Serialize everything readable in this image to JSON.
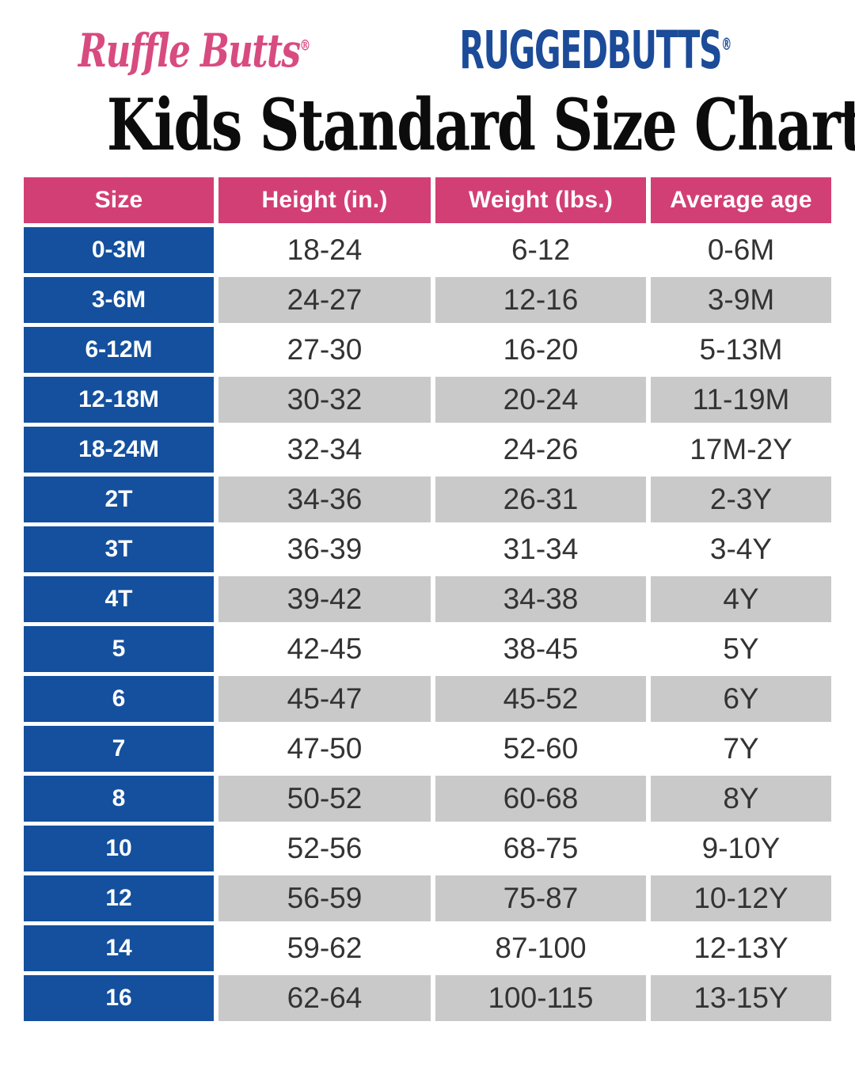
{
  "brand": {
    "rufflebutts": "Ruffle Butts",
    "ruggedbutts": "RUGGEDBUTTS",
    "registered": "®"
  },
  "title": "Kids Standard Size Chart",
  "table": {
    "headers": {
      "size": "Size",
      "height": "Height (in.)",
      "weight": "Weight (lbs.)",
      "age": "Average age"
    },
    "rows": [
      {
        "size": "0-3M",
        "height": "18-24",
        "weight": "6-12",
        "age": "0-6M"
      },
      {
        "size": "3-6M",
        "height": "24-27",
        "weight": "12-16",
        "age": "3-9M"
      },
      {
        "size": "6-12M",
        "height": "27-30",
        "weight": "16-20",
        "age": "5-13M"
      },
      {
        "size": "12-18M",
        "height": "30-32",
        "weight": "20-24",
        "age": "11-19M"
      },
      {
        "size": "18-24M",
        "height": "32-34",
        "weight": "24-26",
        "age": "17M-2Y"
      },
      {
        "size": "2T",
        "height": "34-36",
        "weight": "26-31",
        "age": "2-3Y"
      },
      {
        "size": "3T",
        "height": "36-39",
        "weight": "31-34",
        "age": "3-4Y"
      },
      {
        "size": "4T",
        "height": "39-42",
        "weight": "34-38",
        "age": "4Y"
      },
      {
        "size": "5",
        "height": "42-45",
        "weight": "38-45",
        "age": "5Y"
      },
      {
        "size": "6",
        "height": "45-47",
        "weight": "45-52",
        "age": "6Y"
      },
      {
        "size": "7",
        "height": "47-50",
        "weight": "52-60",
        "age": "7Y"
      },
      {
        "size": "8",
        "height": "50-52",
        "weight": "60-68",
        "age": "8Y"
      },
      {
        "size": "10",
        "height": "52-56",
        "weight": "68-75",
        "age": "9-10Y"
      },
      {
        "size": "12",
        "height": "56-59",
        "weight": "75-87",
        "age": "10-12Y"
      },
      {
        "size": "14",
        "height": "59-62",
        "weight": "87-100",
        "age": "12-13Y"
      },
      {
        "size": "16",
        "height": "62-64",
        "weight": "100-115",
        "age": "13-15Y"
      }
    ]
  },
  "colors": {
    "header_pink": "#D23F75",
    "cell_blue": "#14509E",
    "row_gray": "#C9C9C9",
    "logo_pink": "#D84B80",
    "logo_blue": "#1B4B99"
  }
}
